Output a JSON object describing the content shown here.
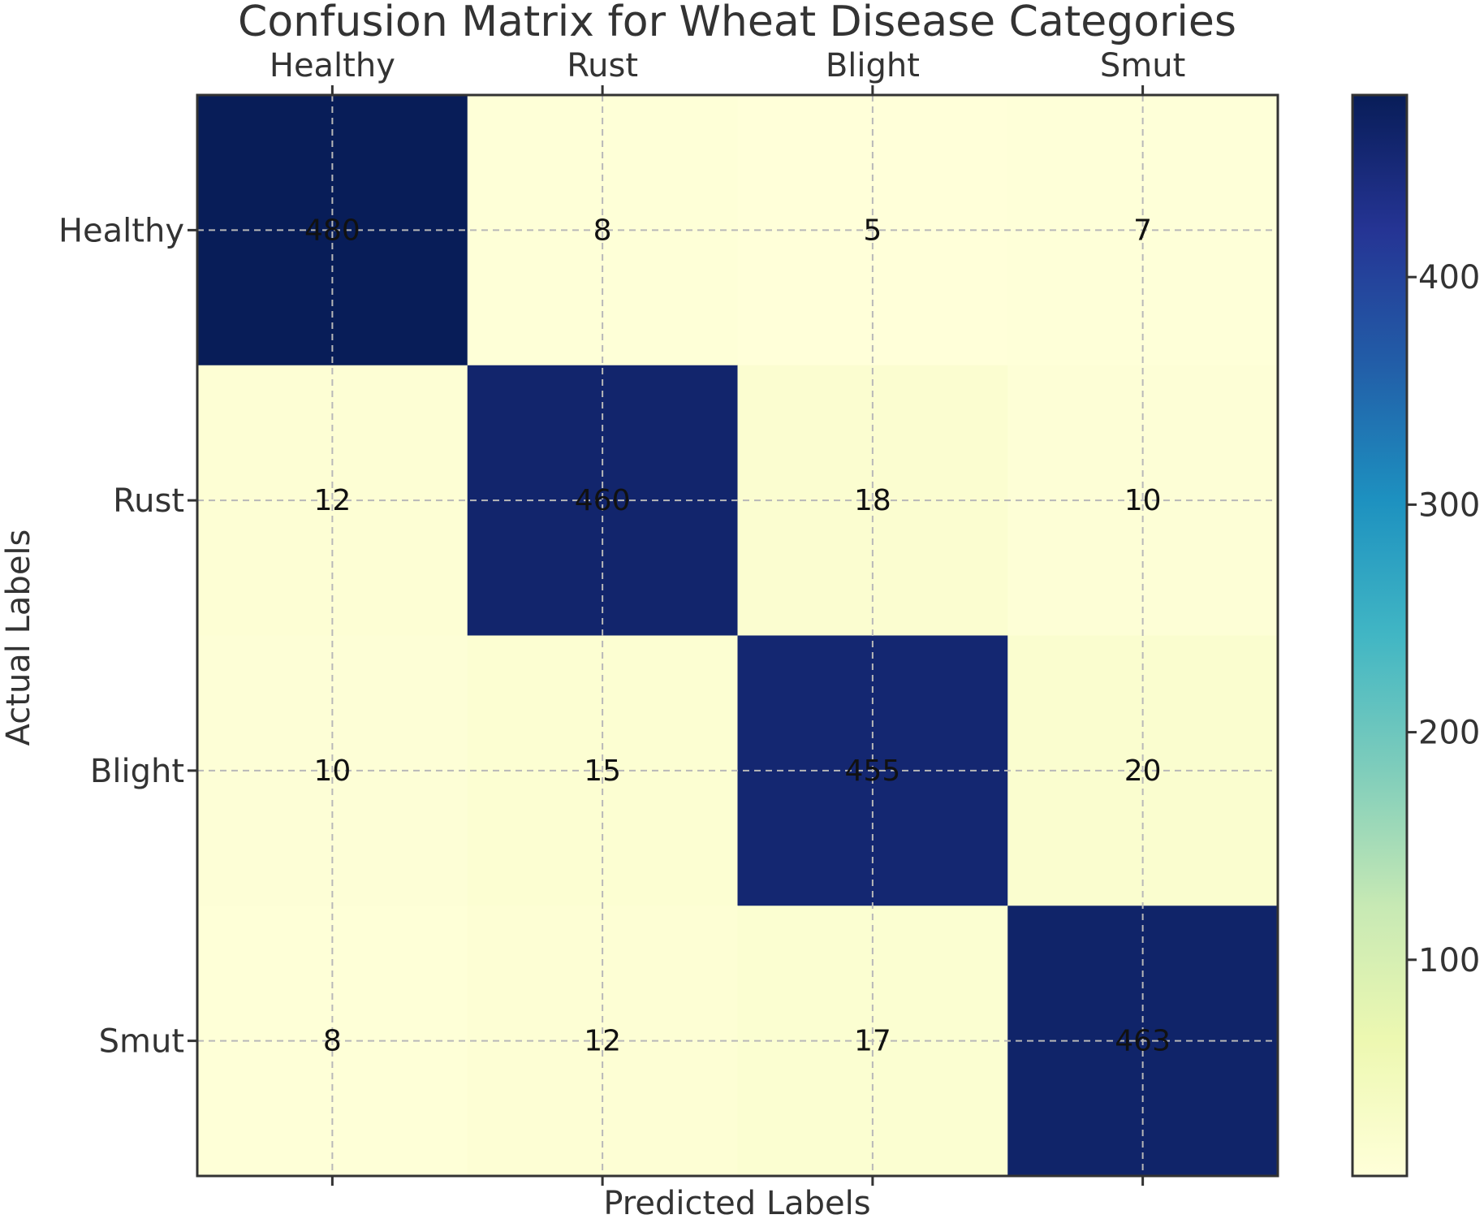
{
  "chart_data": {
    "type": "heatmap",
    "title": "Confusion Matrix for Wheat Disease Categories",
    "xlabel": "Predicted Labels",
    "ylabel": "Actual Labels",
    "x_categories": [
      "Healthy",
      "Rust",
      "Blight",
      "Smut"
    ],
    "y_categories": [
      "Healthy",
      "Rust",
      "Blight",
      "Smut"
    ],
    "values": [
      [
        480,
        8,
        5,
        7
      ],
      [
        12,
        460,
        18,
        10
      ],
      [
        10,
        15,
        455,
        20
      ],
      [
        8,
        12,
        17,
        463
      ]
    ],
    "colormap": "YlGnBu",
    "vmin": 5,
    "vmax": 480,
    "colorbar_ticks": [
      100,
      200,
      300,
      400
    ],
    "colorbar_tick_labels": [
      "100",
      "200",
      "300",
      "400"
    ],
    "grid": true,
    "x_axis_position": "top",
    "colorbar_position": "right"
  }
}
